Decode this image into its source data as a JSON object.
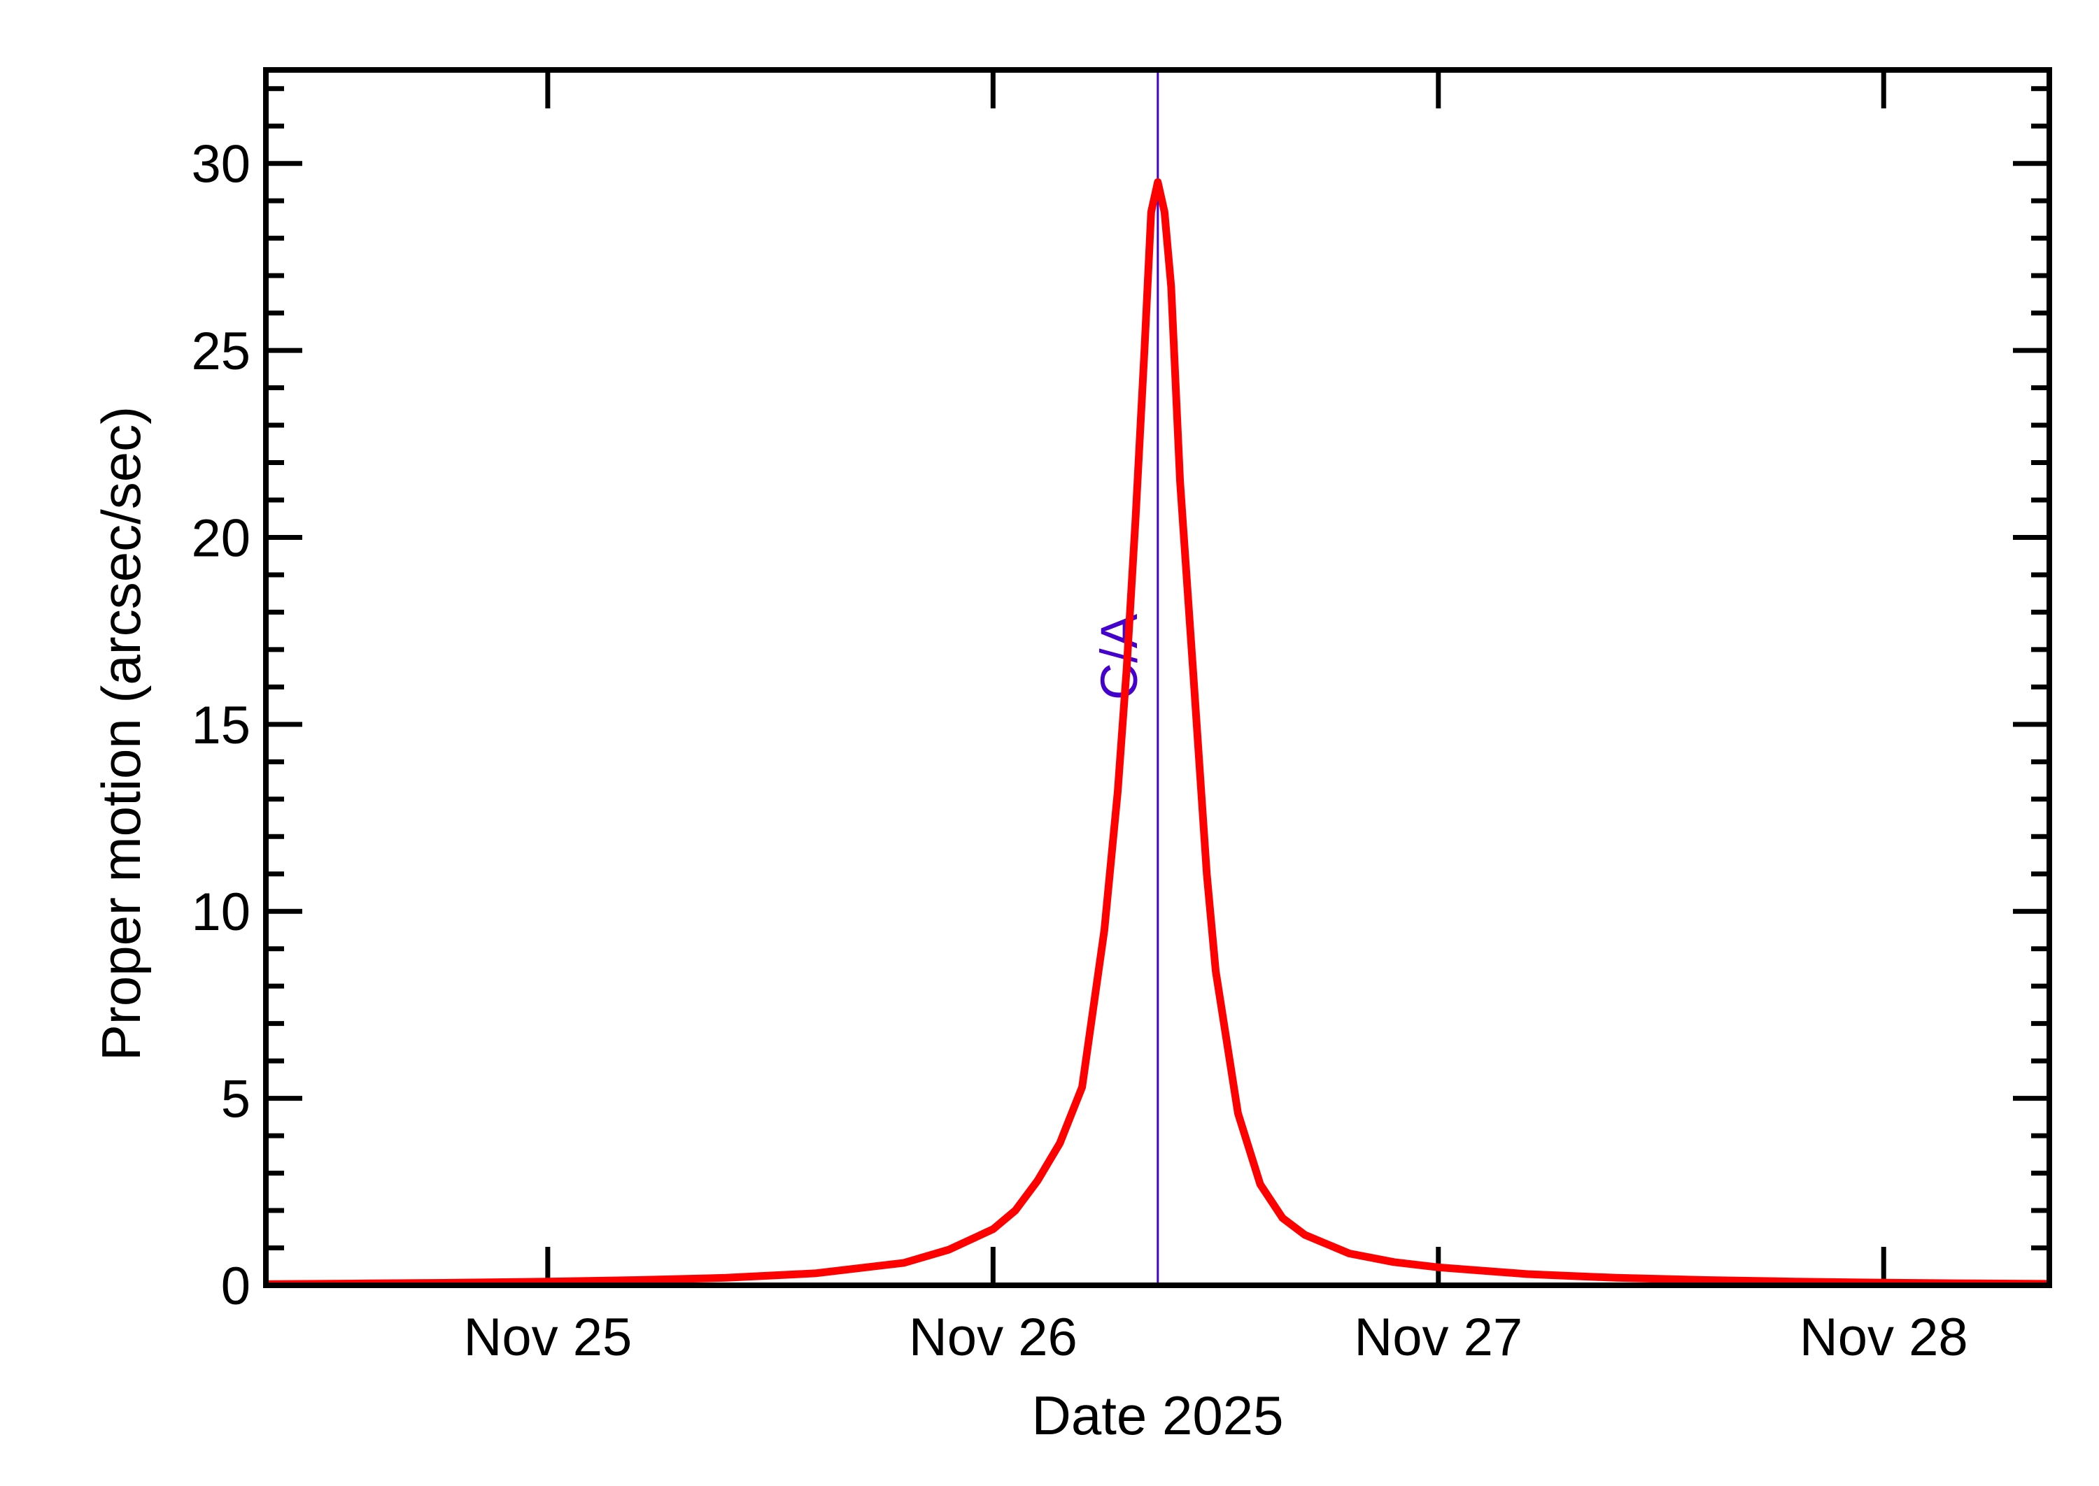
{
  "chart": {
    "xlabel": "Date 2025",
    "ylabel": "Proper motion (arcsec/sec)",
    "ca_label": "C/A",
    "colors": {
      "curve": "#ff0000",
      "ca_line": "#4400cc",
      "axis": "#000000"
    }
  },
  "chart_data": {
    "type": "line",
    "title": "",
    "xlabel": "Date 2025",
    "ylabel": "Proper motion (arcsec/sec)",
    "xlim": [
      24.367,
      28.372
    ],
    "ylim": [
      0,
      32.5
    ],
    "x_ticks": [
      {
        "value": 25,
        "label": "Nov 25"
      },
      {
        "value": 26,
        "label": "Nov 26"
      },
      {
        "value": 27,
        "label": "Nov 27"
      },
      {
        "value": 28,
        "label": "Nov 28"
      }
    ],
    "y_ticks": [
      {
        "value": 0,
        "label": "0"
      },
      {
        "value": 5,
        "label": "5"
      },
      {
        "value": 10,
        "label": "10"
      },
      {
        "value": 15,
        "label": "15"
      },
      {
        "value": 20,
        "label": "20"
      },
      {
        "value": 25,
        "label": "25"
      },
      {
        "value": 30,
        "label": "30"
      }
    ],
    "y_minor_step": 1,
    "grid": false,
    "annotations": [
      {
        "type": "vline",
        "x": 26.37,
        "label": "C/A"
      }
    ],
    "series": [
      {
        "name": "Proper motion",
        "x": [
          24.37,
          24.6,
          24.8,
          25.0,
          25.2,
          25.4,
          25.6,
          25.8,
          25.9,
          26.0,
          26.05,
          26.1,
          26.15,
          26.2,
          26.25,
          26.28,
          26.3,
          26.32,
          26.34,
          26.355,
          26.37,
          26.385,
          26.4,
          26.42,
          26.45,
          26.48,
          26.5,
          26.55,
          26.6,
          26.65,
          26.7,
          26.8,
          26.9,
          27.0,
          27.2,
          27.4,
          27.6,
          27.8,
          28.0,
          28.2,
          28.37
        ],
        "values": [
          0.03,
          0.05,
          0.07,
          0.1,
          0.14,
          0.2,
          0.32,
          0.6,
          0.95,
          1.5,
          2.0,
          2.8,
          3.8,
          5.3,
          9.5,
          13.2,
          16.5,
          20.5,
          25.0,
          28.7,
          29.5,
          28.7,
          26.7,
          21.5,
          16.3,
          11.0,
          8.4,
          4.6,
          2.7,
          1.8,
          1.35,
          0.85,
          0.62,
          0.48,
          0.3,
          0.2,
          0.14,
          0.1,
          0.07,
          0.05,
          0.04
        ]
      }
    ]
  }
}
